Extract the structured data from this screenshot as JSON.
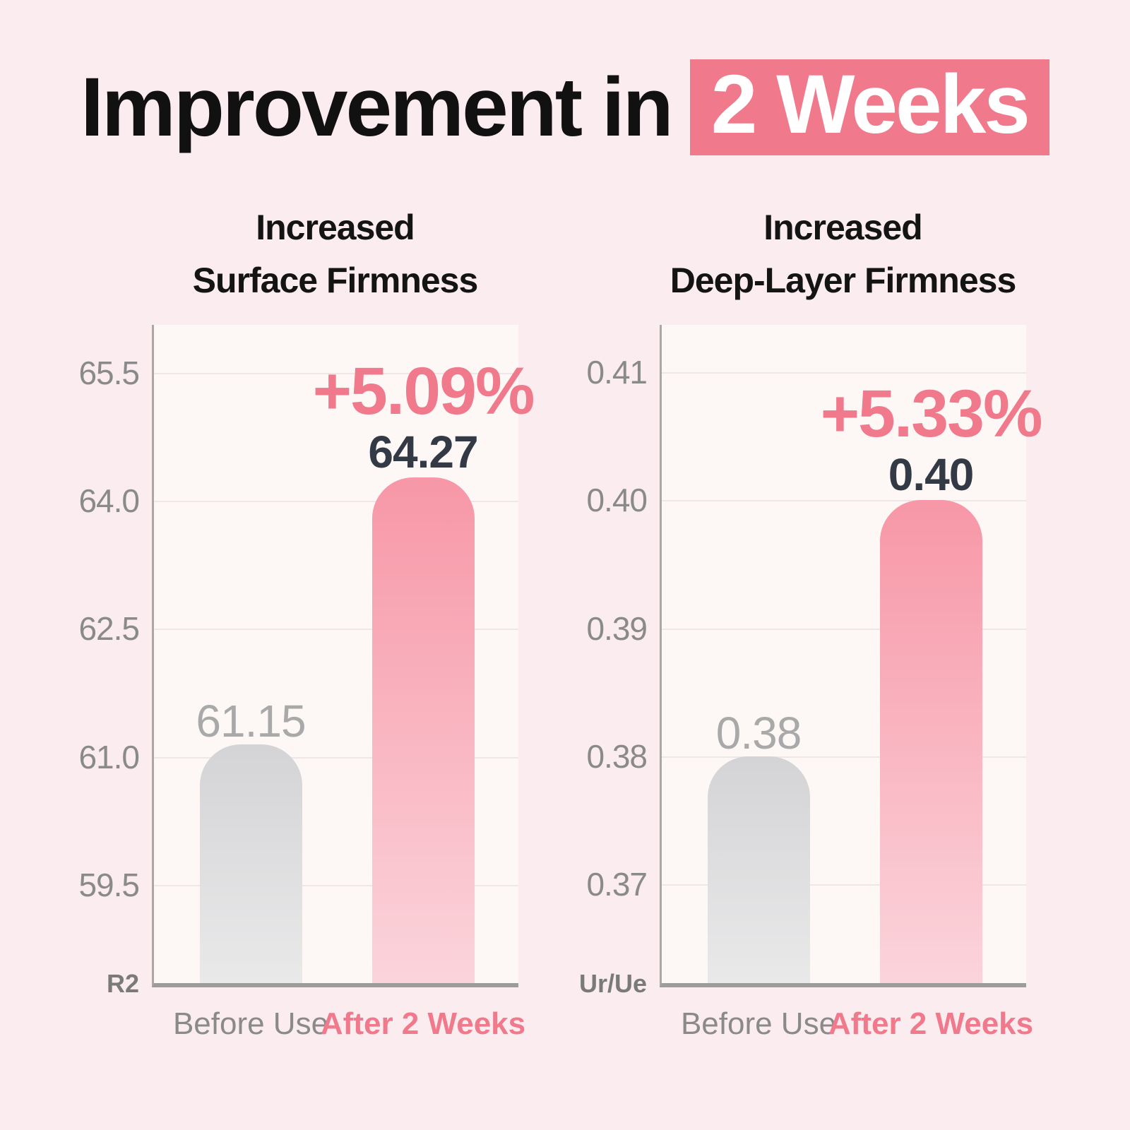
{
  "title": {
    "prefix": "Improvement in",
    "highlight": "2 Weeks"
  },
  "colors": {
    "background": "#FAECEF",
    "accent_pink": "#F0798C",
    "highlight_text": "#FFFFFF",
    "title_text": "#111111",
    "plot_background": "#FDF8F6",
    "grid_line": "#EEE7E6",
    "axis_line": "#ACA6A7",
    "baseline": "#9C9C9C",
    "tick_text": "#8A8A8A",
    "muted_value_text": "#A9A9A9",
    "dark_value_text": "#333A45",
    "bar_before_top": "#D4D4D6",
    "bar_before_bottom": "#E9E9EA",
    "bar_after_top": "#F797A7",
    "bar_after_bottom": "#FBD4DB"
  },
  "chart_data": [
    {
      "type": "bar",
      "title_lines": [
        "Increased",
        "Surface Firmness"
      ],
      "unit_label": "R2",
      "categories": [
        "Before Use",
        "After 2 Weeks"
      ],
      "values": [
        61.15,
        64.27
      ],
      "bar_labels": [
        "61.15",
        "64.27"
      ],
      "delta_label": "+5.09%",
      "ylim": [
        58.35,
        66.06
      ],
      "grid": true,
      "yticks": [
        {
          "value": 65.5,
          "label": "65.5"
        },
        {
          "value": 64.0,
          "label": "64.0"
        },
        {
          "value": 62.5,
          "label": "62.5"
        },
        {
          "value": 61.0,
          "label": "61.0"
        },
        {
          "value": 59.5,
          "label": "59.5"
        }
      ]
    },
    {
      "type": "bar",
      "title_lines": [
        "Increased",
        "Deep-Layer Firmness"
      ],
      "unit_label": "Ur/Ue",
      "categories": [
        "Before Use",
        "After 2 Weeks"
      ],
      "values": [
        0.38,
        0.4
      ],
      "bar_labels": [
        "0.38",
        "0.40"
      ],
      "delta_label": "+5.33%",
      "ylim": [
        0.3623,
        0.4137
      ],
      "grid": true,
      "yticks": [
        {
          "value": 0.41,
          "label": "0.41"
        },
        {
          "value": 0.4,
          "label": "0.40"
        },
        {
          "value": 0.39,
          "label": "0.39"
        },
        {
          "value": 0.38,
          "label": "0.38"
        },
        {
          "value": 0.37,
          "label": "0.37"
        }
      ]
    }
  ]
}
